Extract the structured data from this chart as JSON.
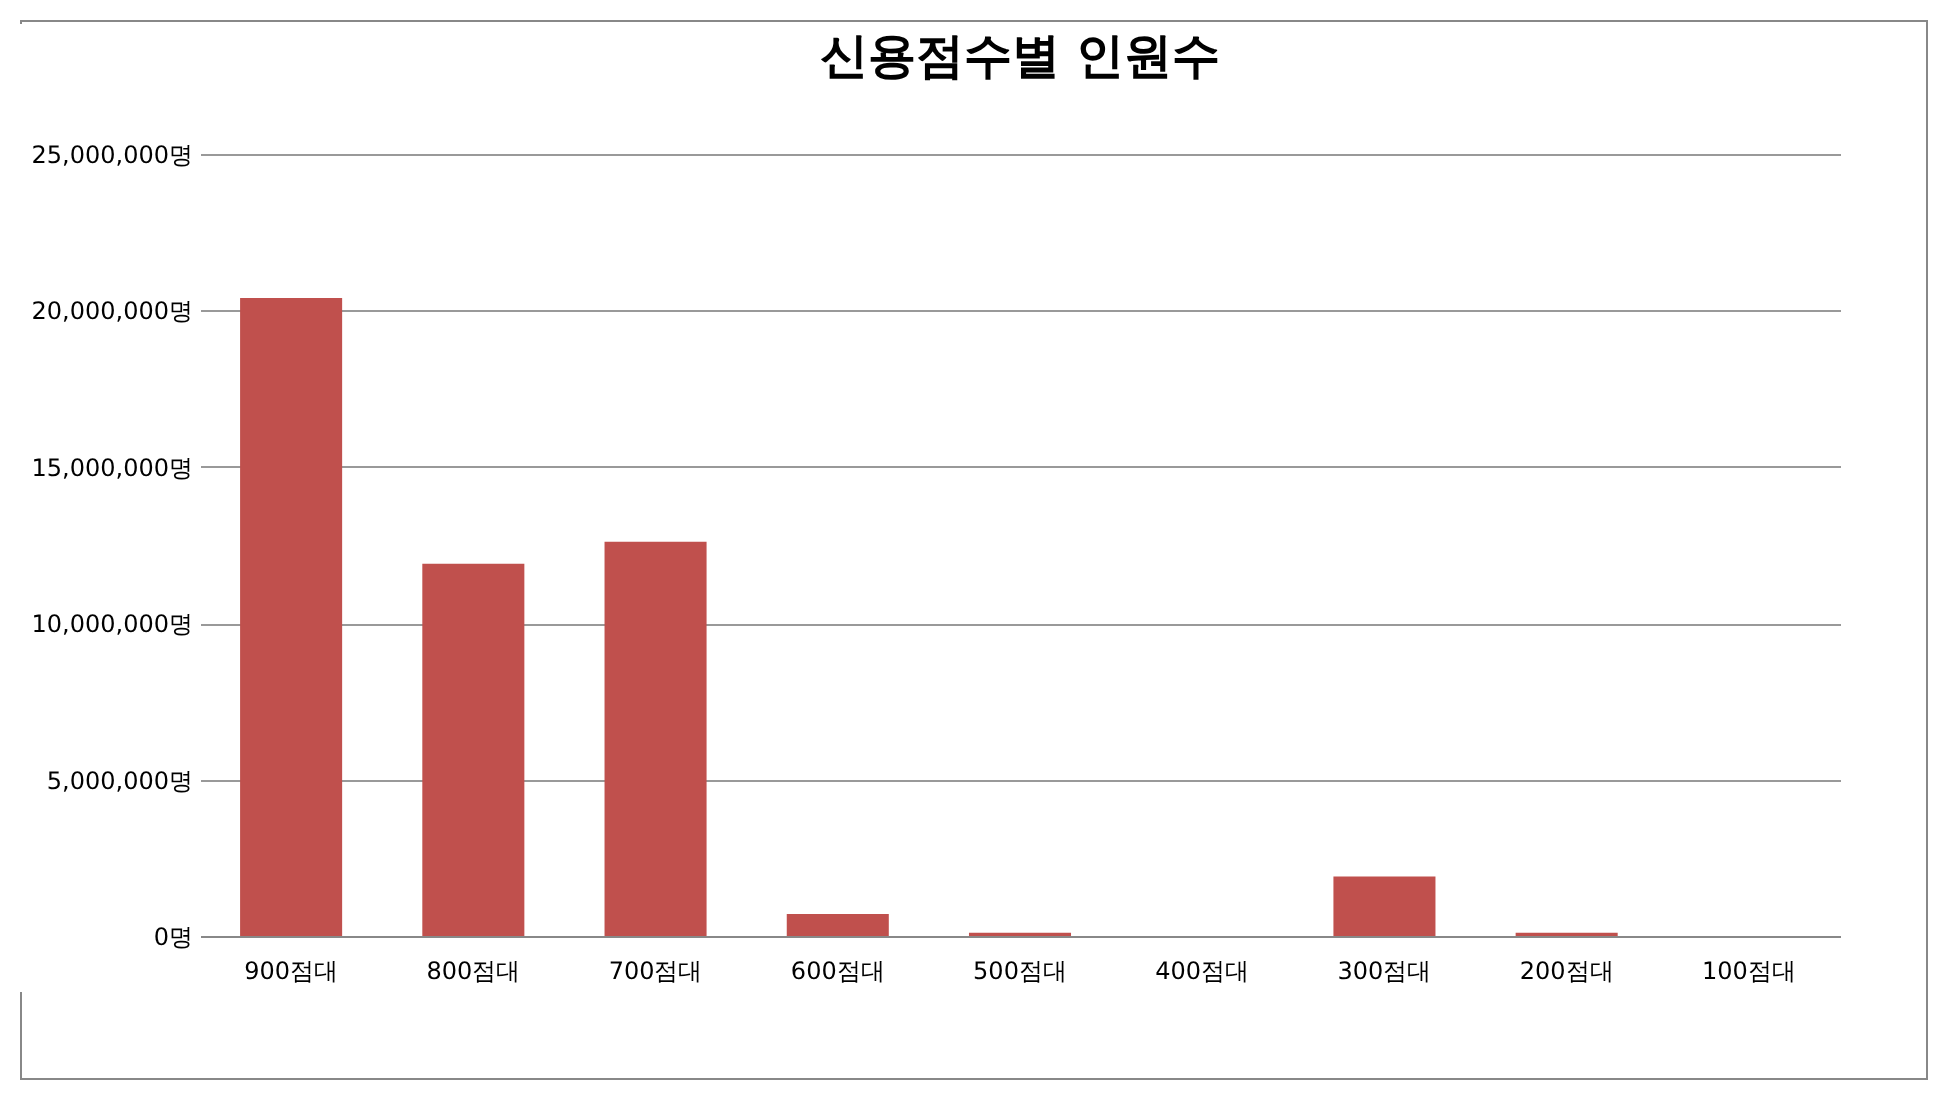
{
  "chart_data": {
    "type": "bar",
    "title": "신용점수별 인원수",
    "categories": [
      "900점대",
      "800점대",
      "700점대",
      "600점대",
      "500점대",
      "400점대",
      "300점대",
      "200점대",
      "100점대"
    ],
    "values": [
      20400000,
      11900000,
      12600000,
      700000,
      100000,
      0,
      1900000,
      100000,
      0
    ],
    "color": "#c0504d",
    "ylim": [
      0,
      25000000
    ],
    "yticks": [
      {
        "value": 0,
        "label": "0명"
      },
      {
        "value": 5000000,
        "label": "5,000,000명"
      },
      {
        "value": 10000000,
        "label": "10,000,000명"
      },
      {
        "value": 15000000,
        "label": "15,000,000명"
      },
      {
        "value": 20000000,
        "label": "20,000,000명"
      },
      {
        "value": 25000000,
        "label": "25,000,000명"
      }
    ],
    "grid": "y"
  }
}
